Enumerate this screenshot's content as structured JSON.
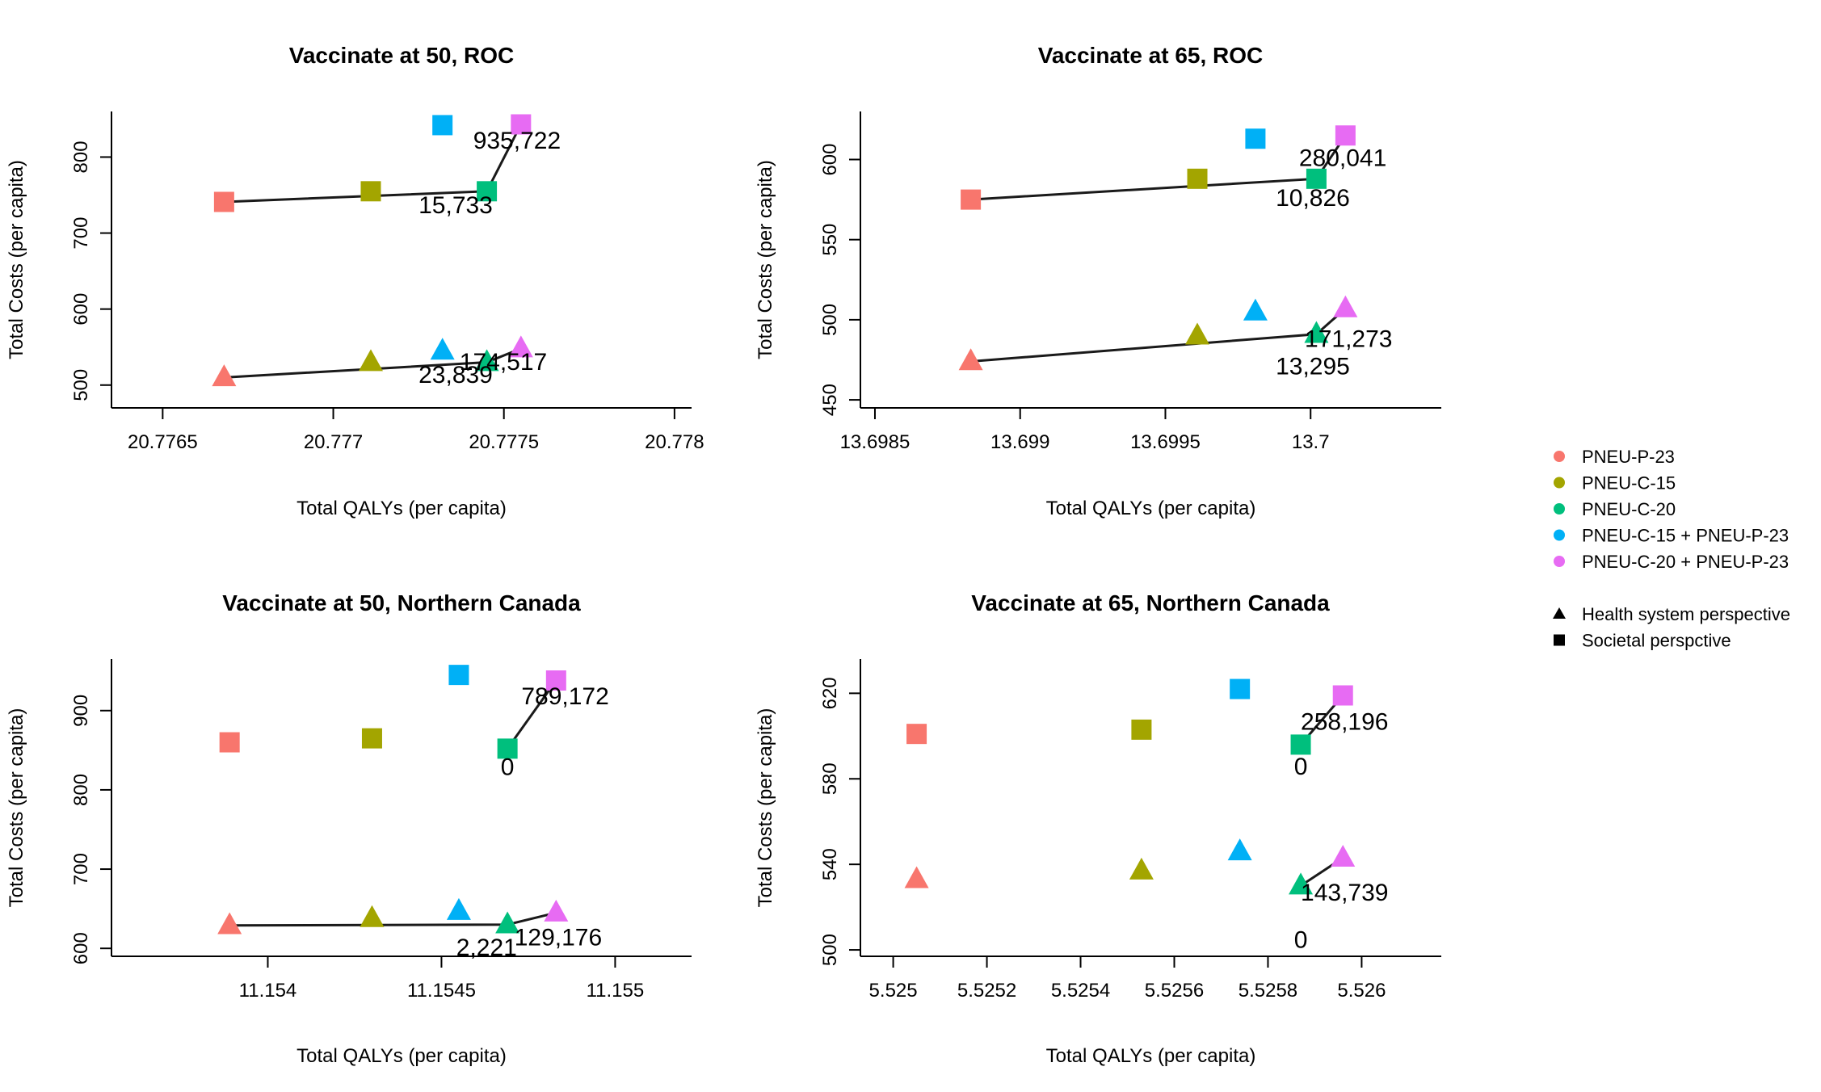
{
  "legend": {
    "vaccines": [
      {
        "key": "p23",
        "label": "PNEU-P-23",
        "color": "#F8766D"
      },
      {
        "key": "c15",
        "label": "PNEU-C-15",
        "color": "#A3A500"
      },
      {
        "key": "c20",
        "label": "PNEU-C-20",
        "color": "#00BF7D"
      },
      {
        "key": "c15p23",
        "label": "PNEU-C-15 + PNEU-P-23",
        "color": "#00B0F6"
      },
      {
        "key": "c20p23",
        "label": "PNEU-C-20 + PNEU-P-23",
        "color": "#E76BF3"
      }
    ],
    "perspectives": [
      {
        "key": "health",
        "label": "Health system perspective",
        "shape": "triangle"
      },
      {
        "key": "societal",
        "label": "Societal perspctive",
        "shape": "square"
      }
    ]
  },
  "chart_data": [
    {
      "type": "scatter",
      "title": "Vaccinate at 50, ROC",
      "xlabel": "Total QALYs (per capita)",
      "ylabel": "Total Costs (per capita)",
      "xlim": [
        20.77635,
        20.77805
      ],
      "ylim": [
        470,
        860
      ],
      "xticks": [
        "20.7765",
        "20.777",
        "20.7775",
        "20.778"
      ],
      "yticks": [
        "500",
        "600",
        "700",
        "800"
      ],
      "series": [
        {
          "perspective": "societal",
          "points": [
            {
              "vaccine": "p23",
              "x": 20.77668,
              "y": 741
            },
            {
              "vaccine": "c15",
              "x": 20.77711,
              "y": 755
            },
            {
              "vaccine": "c20",
              "x": 20.77745,
              "y": 755
            },
            {
              "vaccine": "c15p23",
              "x": 20.77732,
              "y": 842
            },
            {
              "vaccine": "c20p23",
              "x": 20.77755,
              "y": 843
            }
          ]
        },
        {
          "perspective": "health",
          "points": [
            {
              "vaccine": "p23",
              "x": 20.77668,
              "y": 510
            },
            {
              "vaccine": "c15",
              "x": 20.77711,
              "y": 530
            },
            {
              "vaccine": "c20",
              "x": 20.77745,
              "y": 530
            },
            {
              "vaccine": "c15p23",
              "x": 20.77732,
              "y": 545
            },
            {
              "vaccine": "c20p23",
              "x": 20.77755,
              "y": 548
            }
          ]
        }
      ],
      "frontiers": [
        {
          "perspective": "societal",
          "path": [
            "p23",
            "c20",
            "c20p23"
          ]
        },
        {
          "perspective": "health",
          "path": [
            "p23",
            "c20",
            "c20p23"
          ]
        }
      ],
      "annotations": [
        {
          "text": "935,722",
          "x": 20.77741,
          "y": 811,
          "anchor": "start"
        },
        {
          "text": "15,733",
          "x": 20.77725,
          "y": 726,
          "anchor": "start"
        },
        {
          "text": "174,517",
          "x": 20.77737,
          "y": 520,
          "anchor": "start"
        },
        {
          "text": "23,839",
          "x": 20.77725,
          "y": 503,
          "anchor": "start"
        }
      ]
    },
    {
      "type": "scatter",
      "title": "Vaccinate at 65, ROC",
      "xlabel": "Total QALYs (per capita)",
      "ylabel": "Total Costs (per capita)",
      "xlim": [
        13.69845,
        13.70045
      ],
      "ylim": [
        445,
        630
      ],
      "xticks": [
        "13.6985",
        "13.699",
        "13.6995",
        "13.7"
      ],
      "yticks": [
        "450",
        "500",
        "550",
        "600"
      ],
      "series": [
        {
          "perspective": "societal",
          "points": [
            {
              "vaccine": "p23",
              "x": 13.69883,
              "y": 575
            },
            {
              "vaccine": "c15",
              "x": 13.69961,
              "y": 588
            },
            {
              "vaccine": "c20",
              "x": 13.70002,
              "y": 588
            },
            {
              "vaccine": "c15p23",
              "x": 13.69981,
              "y": 613
            },
            {
              "vaccine": "c20p23",
              "x": 13.70012,
              "y": 615
            }
          ]
        },
        {
          "perspective": "health",
          "points": [
            {
              "vaccine": "p23",
              "x": 13.69883,
              "y": 474
            },
            {
              "vaccine": "c15",
              "x": 13.69961,
              "y": 490
            },
            {
              "vaccine": "c20",
              "x": 13.70002,
              "y": 491
            },
            {
              "vaccine": "c15p23",
              "x": 13.69981,
              "y": 505
            },
            {
              "vaccine": "c20p23",
              "x": 13.70012,
              "y": 507
            }
          ]
        }
      ],
      "frontiers": [
        {
          "perspective": "societal",
          "path": [
            "p23",
            "c20",
            "c20p23"
          ]
        },
        {
          "perspective": "health",
          "path": [
            "p23",
            "c20",
            "c20p23"
          ]
        }
      ],
      "annotations": [
        {
          "text": "280,041",
          "x": 13.69996,
          "y": 596,
          "anchor": "start"
        },
        {
          "text": "10,826",
          "x": 13.69988,
          "y": 571,
          "anchor": "start"
        },
        {
          "text": "171,273",
          "x": 13.69998,
          "y": 483,
          "anchor": "start"
        },
        {
          "text": "13,295",
          "x": 13.69988,
          "y": 466,
          "anchor": "start"
        }
      ]
    },
    {
      "type": "scatter",
      "title": "Vaccinate at 50, Northern Canada",
      "xlabel": "Total QALYs (per capita)",
      "ylabel": "Total Costs (per capita)",
      "xlim": [
        11.15355,
        11.15522
      ],
      "ylim": [
        590,
        965
      ],
      "xticks": [
        "11.154",
        "11.1545",
        "11.155"
      ],
      "yticks": [
        "600",
        "700",
        "800",
        "900"
      ],
      "series": [
        {
          "perspective": "societal",
          "points": [
            {
              "vaccine": "p23",
              "x": 11.15389,
              "y": 860
            },
            {
              "vaccine": "c15",
              "x": 11.1543,
              "y": 865
            },
            {
              "vaccine": "c20",
              "x": 11.15469,
              "y": 852
            },
            {
              "vaccine": "c15p23",
              "x": 11.15455,
              "y": 945
            },
            {
              "vaccine": "c20p23",
              "x": 11.15483,
              "y": 938
            }
          ]
        },
        {
          "perspective": "health",
          "points": [
            {
              "vaccine": "p23",
              "x": 11.15389,
              "y": 629
            },
            {
              "vaccine": "c15",
              "x": 11.1543,
              "y": 638
            },
            {
              "vaccine": "c20",
              "x": 11.15469,
              "y": 630
            },
            {
              "vaccine": "c15p23",
              "x": 11.15455,
              "y": 647
            },
            {
              "vaccine": "c20p23",
              "x": 11.15483,
              "y": 645
            }
          ]
        }
      ],
      "frontiers": [
        {
          "perspective": "societal",
          "path": [
            "c20",
            "c20p23"
          ]
        },
        {
          "perspective": "health",
          "path": [
            "p23",
            "c20",
            "c20p23"
          ]
        }
      ],
      "annotations": [
        {
          "text": "789,172",
          "x": 11.15473,
          "y": 908,
          "anchor": "start"
        },
        {
          "text": "0",
          "x": 11.15469,
          "y": 819,
          "anchor": "middle"
        },
        {
          "text": "129,176",
          "x": 11.15471,
          "y": 604,
          "anchor": "start"
        },
        {
          "text": "2,221",
          "x": 11.15463,
          "y": 591,
          "anchor": "middle"
        }
      ]
    },
    {
      "type": "scatter",
      "title": "Vaccinate at 65, Northern Canada",
      "xlabel": "Total QALYs (per capita)",
      "ylabel": "Total Costs (per capita)",
      "xlim": [
        5.52493,
        5.52617
      ],
      "ylim": [
        497,
        636
      ],
      "xticks": [
        "5.525",
        "5.5252",
        "5.5254",
        "5.5256",
        "5.5258",
        "5.526"
      ],
      "yticks": [
        "500",
        "540",
        "580",
        "620"
      ],
      "series": [
        {
          "perspective": "societal",
          "points": [
            {
              "vaccine": "p23",
              "x": 5.52505,
              "y": 601
            },
            {
              "vaccine": "c15",
              "x": 5.52553,
              "y": 603
            },
            {
              "vaccine": "c20",
              "x": 5.52587,
              "y": 596
            },
            {
              "vaccine": "c15p23",
              "x": 5.52574,
              "y": 622
            },
            {
              "vaccine": "c20p23",
              "x": 5.52596,
              "y": 619
            }
          ]
        },
        {
          "perspective": "health",
          "points": [
            {
              "vaccine": "p23",
              "x": 5.52505,
              "y": 533
            },
            {
              "vaccine": "c15",
              "x": 5.52553,
              "y": 537
            },
            {
              "vaccine": "c20",
              "x": 5.52587,
              "y": 530
            },
            {
              "vaccine": "c15p23",
              "x": 5.52574,
              "y": 546
            },
            {
              "vaccine": "c20p23",
              "x": 5.52596,
              "y": 543
            }
          ]
        }
      ],
      "frontiers": [
        {
          "perspective": "societal",
          "path": [
            "c20",
            "c20p23"
          ]
        },
        {
          "perspective": "health",
          "path": [
            "c20",
            "c20p23"
          ]
        }
      ],
      "annotations": [
        {
          "text": "258,196",
          "x": 5.52587,
          "y": 603,
          "anchor": "start"
        },
        {
          "text": "0",
          "x": 5.52587,
          "y": 582,
          "anchor": "middle"
        },
        {
          "text": "143,739",
          "x": 5.52587,
          "y": 523,
          "anchor": "start"
        },
        {
          "text": "0",
          "x": 5.52587,
          "y": 501,
          "anchor": "middle"
        }
      ]
    }
  ]
}
